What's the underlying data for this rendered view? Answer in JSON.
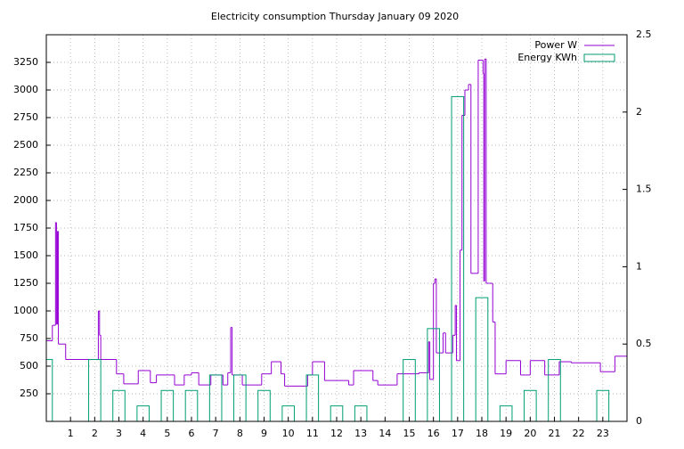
{
  "chart_data": {
    "type": "line",
    "title": "Electricity consumption Thursday January 09 2020",
    "xlim": [
      0,
      24
    ],
    "xticks": [
      1,
      2,
      3,
      4,
      5,
      6,
      7,
      8,
      9,
      10,
      11,
      12,
      13,
      14,
      15,
      16,
      17,
      18,
      19,
      20,
      21,
      22,
      23
    ],
    "ylim": [
      0,
      3500
    ],
    "yticks": [
      250,
      500,
      750,
      1000,
      1250,
      1500,
      1750,
      2000,
      2250,
      2500,
      2750,
      3000,
      3250
    ],
    "y2lim": [
      0,
      2.5
    ],
    "y2ticks": [
      0,
      0.5,
      1,
      1.5,
      2,
      2.5
    ],
    "grid": true,
    "legend": "top-right",
    "series": [
      {
        "name": "Power W",
        "color": "#9400d3",
        "style": "steps",
        "x": [
          0,
          0.25,
          0.38,
          0.42,
          0.46,
          0.5,
          0.8,
          2.15,
          2.2,
          2.25,
          2.9,
          3.2,
          3.8,
          4.3,
          4.55,
          5.3,
          5.7,
          6.0,
          6.3,
          6.8,
          7.3,
          7.5,
          7.62,
          7.68,
          8.1,
          8.9,
          9.3,
          9.7,
          9.85,
          10.8,
          11.0,
          11.5,
          12.5,
          12.7,
          13.5,
          13.7,
          14.5,
          15.4,
          15.8,
          15.85,
          16.0,
          16.06,
          16.12,
          16.4,
          16.5,
          16.8,
          16.9,
          16.95,
          17.1,
          17.18,
          17.3,
          17.45,
          17.55,
          17.85,
          18.05,
          18.08,
          18.12,
          18.18,
          18.45,
          18.55,
          19.0,
          19.6,
          20.0,
          20.6,
          21.2,
          21.7,
          22.9,
          23.5
        ],
        "values": [
          730,
          870,
          1800,
          880,
          1720,
          700,
          560,
          1000,
          780,
          560,
          430,
          340,
          460,
          350,
          420,
          330,
          420,
          440,
          330,
          420,
          330,
          440,
          850,
          420,
          330,
          430,
          540,
          430,
          320,
          420,
          540,
          370,
          330,
          460,
          370,
          330,
          430,
          440,
          720,
          380,
          1250,
          1290,
          620,
          800,
          620,
          780,
          1050,
          550,
          1550,
          2770,
          3000,
          3050,
          1340,
          3270,
          3150,
          1270,
          3280,
          1250,
          900,
          430,
          550,
          420,
          550,
          420,
          540,
          530,
          450,
          590
        ]
      },
      {
        "name": "Energy KWh",
        "color": "#009e73",
        "style": "boxes",
        "axis": "y2",
        "x": [
          0,
          1,
          2,
          3,
          4,
          5,
          6,
          7,
          8,
          9,
          10,
          11,
          12,
          13,
          14,
          15,
          16,
          17,
          18,
          19,
          20,
          21,
          22,
          23
        ],
        "values": [
          0.4,
          0,
          0.4,
          0.2,
          0.1,
          0.2,
          0.2,
          0.3,
          0.3,
          0.2,
          0.1,
          0.3,
          0.1,
          0.1,
          0,
          0.4,
          0.6,
          2.1,
          0.8,
          0.1,
          0.2,
          0.4,
          0,
          0.2
        ]
      }
    ]
  }
}
